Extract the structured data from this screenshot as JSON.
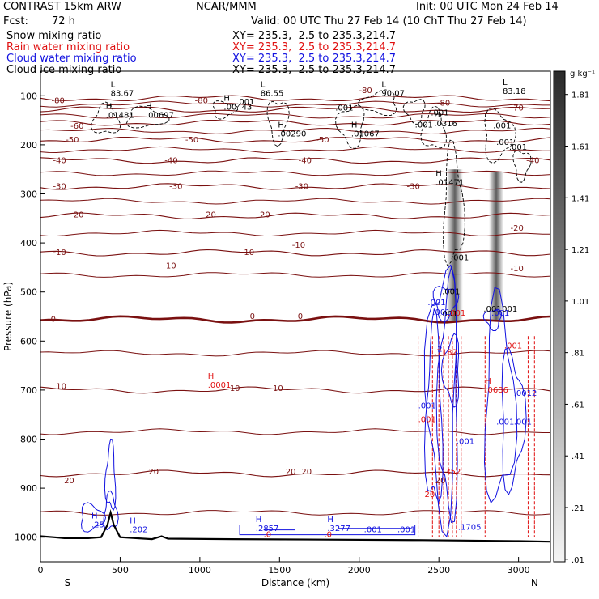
{
  "header": {
    "model": "CONTRAST 15km ARW",
    "org": "NCAR/MMM",
    "init": "Init: 00 UTC Mon 24 Feb 14",
    "fcst_label": "Fcst:",
    "fcst_value": "72 h",
    "valid": "Valid: 00 UTC Thu 27 Feb 14 (10 ChT Thu 27 Feb 14)",
    "fields": [
      {
        "name": "Snow mixing ratio",
        "xy": "XY= 235.3,  2.5 to 235.3,214.7",
        "color": "#000000"
      },
      {
        "name": "Rain water mixing ratio",
        "xy": "XY= 235.3,  2.5 to 235.3,214.7",
        "color": "#e01010"
      },
      {
        "name": "Cloud water mixing ratio",
        "xy": "XY= 235.3,  2.5 to 235.3,214.7",
        "color": "#1010e0"
      },
      {
        "name": "Cloud ice mixing ratio",
        "xy": "XY= 235.3,  2.5 to 235.3,214.7",
        "color": "#000000"
      }
    ]
  },
  "chart_data": {
    "type": "contour",
    "xlabel": "Distance (km)",
    "ylabel": "Pressure (hPa)",
    "xlim": [
      0,
      3200
    ],
    "ylim": [
      1050,
      50
    ],
    "x_ticks": [
      0,
      500,
      1000,
      1500,
      2000,
      2500,
      3000
    ],
    "y_ticks": [
      100,
      200,
      300,
      400,
      500,
      600,
      700,
      800,
      900,
      1000
    ],
    "x_end_labels": {
      "left": "S",
      "right": "N"
    },
    "colorbar": {
      "unit": "g kg⁻¹",
      "ticks": [
        1.81,
        1.61,
        1.41,
        1.21,
        1.01,
        0.81,
        0.61,
        0.41,
        0.21,
        0.01
      ],
      "tick_labels": [
        "1.81",
        "1.61",
        "1.41",
        "1.21",
        "1.01",
        ".81",
        ".61",
        ".41",
        ".21",
        ".01"
      ],
      "range": [
        0,
        1.9
      ]
    },
    "temperature_contours_C": [
      -80,
      -70,
      -60,
      -50,
      -40,
      -30,
      -20,
      -10,
      0,
      10,
      20
    ],
    "temperature_levels_hPa": [
      {
        "t": -80,
        "p": 105
      },
      {
        "t": -70,
        "p": 128
      },
      {
        "t": -60,
        "p": 155
      },
      {
        "t": -50,
        "p": 190
      },
      {
        "t": -40,
        "p": 232
      },
      {
        "t": -30,
        "p": 285
      },
      {
        "t": -20,
        "p": 345
      },
      {
        "t": -10,
        "p": 420
      },
      {
        "t": 0,
        "p": 556
      },
      {
        "t": 10,
        "p": 700
      },
      {
        "t": 20,
        "p": 870
      }
    ],
    "extra_isotherm_levels_hPa": [
      117,
      141,
      172,
      210,
      258,
      315,
      380,
      465,
      625,
      785,
      950
    ],
    "temperature_labels": [
      {
        "text": "-80",
        "x": 110,
        "p": 110
      },
      {
        "text": "-80",
        "x": 2040,
        "p": 90
      },
      {
        "text": "-80",
        "x": 1010,
        "p": 110
      },
      {
        "text": "-80",
        "x": 2530,
        "p": 115
      },
      {
        "text": "-70",
        "x": 2990,
        "p": 125
      },
      {
        "text": "-60",
        "x": 230,
        "p": 162
      },
      {
        "text": "-50",
        "x": 200,
        "p": 190
      },
      {
        "text": "-50",
        "x": 950,
        "p": 190
      },
      {
        "text": "-50",
        "x": 1770,
        "p": 190
      },
      {
        "text": "-40",
        "x": 120,
        "p": 232
      },
      {
        "text": "-40",
        "x": 820,
        "p": 232
      },
      {
        "text": "-40",
        "x": 1660,
        "p": 232
      },
      {
        "text": "-40",
        "x": 3090,
        "p": 232
      },
      {
        "text": "-30",
        "x": 120,
        "p": 285
      },
      {
        "text": "-30",
        "x": 850,
        "p": 285
      },
      {
        "text": "-30",
        "x": 1640,
        "p": 285
      },
      {
        "text": "-30",
        "x": 2340,
        "p": 285
      },
      {
        "text": "-20",
        "x": 230,
        "p": 343
      },
      {
        "text": "-20",
        "x": 1400,
        "p": 343
      },
      {
        "text": "-20",
        "x": 1060,
        "p": 343
      },
      {
        "text": "-20",
        "x": 2990,
        "p": 370
      },
      {
        "text": "-10",
        "x": 120,
        "p": 420
      },
      {
        "text": "-10",
        "x": 1300,
        "p": 420
      },
      {
        "text": "-10",
        "x": 1620,
        "p": 405
      },
      {
        "text": "-10",
        "x": 810,
        "p": 447
      },
      {
        "text": "-10",
        "x": 2990,
        "p": 453
      },
      {
        "text": "0",
        "x": 80,
        "p": 556
      },
      {
        "text": "0",
        "x": 1330,
        "p": 550
      },
      {
        "text": "0",
        "x": 1630,
        "p": 550
      },
      {
        "text": "10",
        "x": 130,
        "p": 693
      },
      {
        "text": "10",
        "x": 1220,
        "p": 697
      },
      {
        "text": "10",
        "x": 1490,
        "p": 697
      },
      {
        "text": "20",
        "x": 180,
        "p": 885
      },
      {
        "text": "20",
        "x": 710,
        "p": 867
      },
      {
        "text": "20",
        "x": 1570,
        "p": 867
      },
      {
        "text": "20",
        "x": 1670,
        "p": 867
      },
      {
        "text": "20",
        "x": 2510,
        "p": 885
      }
    ],
    "snow_maxima": [
      {
        "label": "H",
        "value": ".01481",
        "x": 410,
        "p": 145
      },
      {
        "label": "H",
        "value": ".00697",
        "x": 660,
        "p": 145
      },
      {
        "label": "H",
        "value": ".00443",
        "x": 1150,
        "p": 128
      },
      {
        "label": "H",
        "value": ".00290",
        "x": 1490,
        "p": 183
      },
      {
        "label": "H",
        "value": ".01067",
        "x": 1950,
        "p": 183
      }
    ],
    "cloud_ice_maxima": [
      {
        "label": "L",
        "value": "83.67",
        "x": 440,
        "p": 100
      },
      {
        "label": "L",
        "value": "86.55",
        "x": 1380,
        "p": 100
      },
      {
        "label": "L",
        "value": "90.07",
        "x": 2140,
        "p": 100
      },
      {
        "label": "L",
        "value": "83.18",
        "x": 2900,
        "p": 96
      },
      {
        "label": "H",
        "value": ".0316",
        "x": 2470,
        "p": 162
      },
      {
        "label": "H",
        "value": ".01471",
        "x": 2480,
        "p": 282
      },
      {
        "label": "",
        "value": ".001",
        "x": 2450,
        "p": 140
      },
      {
        "label": "",
        "value": ".001",
        "x": 2940,
        "p": 210
      },
      {
        "label": "",
        "value": ".001",
        "x": 2350,
        "p": 165
      },
      {
        "label": "",
        "value": ".001",
        "x": 1850,
        "p": 130
      },
      {
        "label": "",
        "value": ".001",
        "x": 1230,
        "p": 118
      },
      {
        "label": "",
        "value": ".001",
        "x": 2575,
        "p": 435
      },
      {
        "label": "",
        "value": ".001",
        "x": 2840,
        "p": 166
      },
      {
        "label": "",
        "value": ".001",
        "x": 2860,
        "p": 200
      },
      {
        "label": "",
        "value": ".001",
        "x": 2880,
        "p": 540
      },
      {
        "label": "",
        "value": ".001",
        "x": 2780,
        "p": 540
      },
      {
        "label": "",
        "value": ".001",
        "x": 2505,
        "p": 550
      },
      {
        "label": "",
        "value": ".001",
        "x": 2520,
        "p": 505
      }
    ],
    "rain_maxima": [
      {
        "label": "H",
        "value": ".0001",
        "x": 1050,
        "p": 695
      },
      {
        "label": "H",
        "value": ".0686",
        "x": 2790,
        "p": 705
      },
      {
        "label": "",
        "value": ".001",
        "x": 2555,
        "p": 548
      },
      {
        "label": "",
        "value": ".001",
        "x": 2910,
        "p": 615
      },
      {
        "label": "",
        "value": ".7182",
        "x": 2470,
        "p": 628
      },
      {
        "label": "",
        "value": ".001",
        "x": 2370,
        "p": 765
      },
      {
        "label": "",
        "value": ".352",
        "x": 2525,
        "p": 872
      },
      {
        "label": "",
        "value": ".0",
        "x": 1400,
        "p": 1000
      },
      {
        "label": "",
        "value": ".0",
        "x": 1780,
        "p": 1000
      },
      {
        "label": "",
        "value": "20",
        "x": 2410,
        "p": 918
      }
    ],
    "cloud_water_maxima": [
      {
        "label": "H",
        "value": ".25",
        "x": 320,
        "p": 980
      },
      {
        "label": "H",
        "value": ".202",
        "x": 560,
        "p": 990
      },
      {
        "label": "H",
        "value": ".2857",
        "x": 1350,
        "p": 987
      },
      {
        "label": "H",
        "value": ".3277",
        "x": 1800,
        "p": 987
      },
      {
        "label": "",
        "value": ".001",
        "x": 2030,
        "p": 990
      },
      {
        "label": "",
        "value": ".001",
        "x": 2240,
        "p": 990
      },
      {
        "label": "",
        "value": ".1705",
        "x": 2620,
        "p": 985
      },
      {
        "label": "",
        "value": ".001",
        "x": 2430,
        "p": 527
      },
      {
        "label": "",
        "value": ".001",
        "x": 2460,
        "p": 547
      },
      {
        "label": "",
        "value": ".001",
        "x": 2830,
        "p": 548
      },
      {
        "label": "",
        "value": ".001",
        "x": 2370,
        "p": 737
      },
      {
        "label": "",
        "value": ".001",
        "x": 2970,
        "p": 770
      },
      {
        "label": "",
        "value": ".001",
        "x": 2860,
        "p": 770
      },
      {
        "label": "",
        "value": ".0012",
        "x": 2970,
        "p": 712
      },
      {
        "label": "",
        "value": ".001",
        "x": 2610,
        "p": 810
      },
      {
        "label": "",
        "value": "2",
        "x": 2490,
        "p": 622
      }
    ],
    "terrain_profile": [
      [
        0,
        998
      ],
      [
        80,
        1000
      ],
      [
        150,
        1002
      ],
      [
        300,
        1002
      ],
      [
        380,
        1000
      ],
      [
        420,
        975
      ],
      [
        440,
        950
      ],
      [
        460,
        975
      ],
      [
        500,
        1000
      ],
      [
        700,
        1004
      ],
      [
        760,
        998
      ],
      [
        800,
        1003
      ],
      [
        1200,
        1004
      ],
      [
        1800,
        1005
      ],
      [
        2400,
        1006
      ],
      [
        3000,
        1008
      ],
      [
        3200,
        1009
      ]
    ]
  }
}
